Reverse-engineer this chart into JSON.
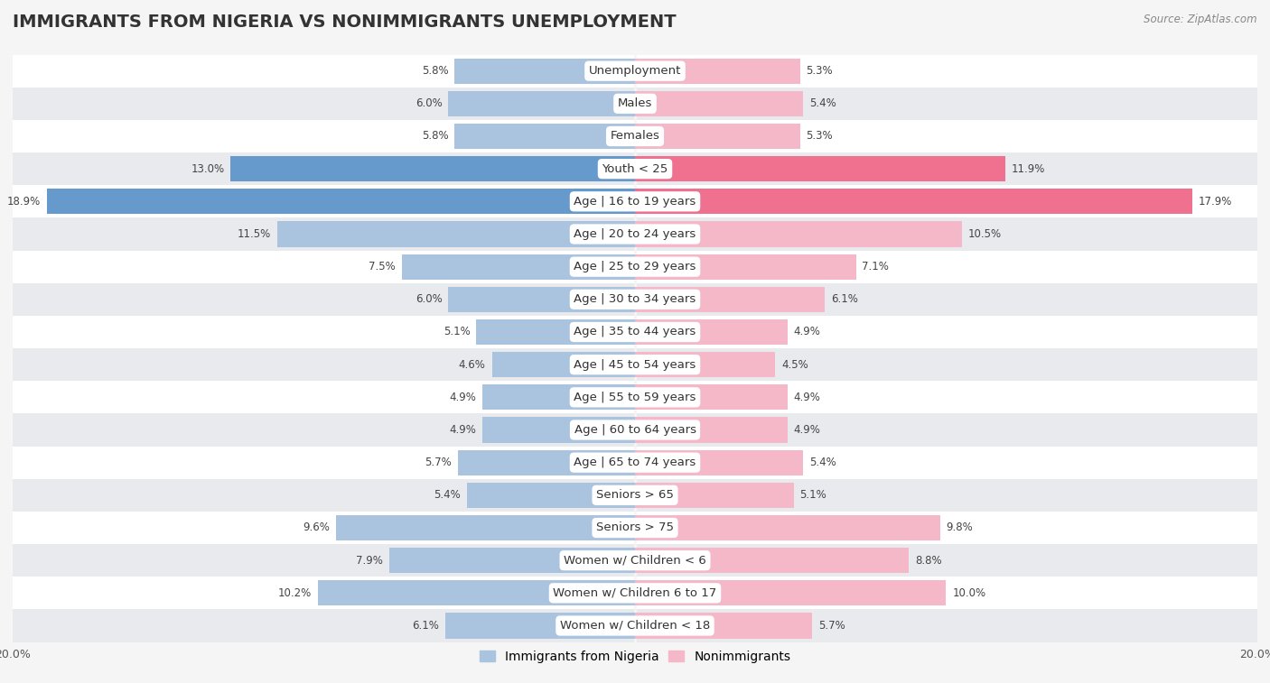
{
  "title": "IMMIGRANTS FROM NIGERIA VS NONIMMIGRANTS UNEMPLOYMENT",
  "source": "Source: ZipAtlas.com",
  "categories": [
    "Unemployment",
    "Males",
    "Females",
    "Youth < 25",
    "Age | 16 to 19 years",
    "Age | 20 to 24 years",
    "Age | 25 to 29 years",
    "Age | 30 to 34 years",
    "Age | 35 to 44 years",
    "Age | 45 to 54 years",
    "Age | 55 to 59 years",
    "Age | 60 to 64 years",
    "Age | 65 to 74 years",
    "Seniors > 65",
    "Seniors > 75",
    "Women w/ Children < 6",
    "Women w/ Children 6 to 17",
    "Women w/ Children < 18"
  ],
  "nigeria_values": [
    5.8,
    6.0,
    5.8,
    13.0,
    18.9,
    11.5,
    7.5,
    6.0,
    5.1,
    4.6,
    4.9,
    4.9,
    5.7,
    5.4,
    9.6,
    7.9,
    10.2,
    6.1
  ],
  "nonimmigrant_values": [
    5.3,
    5.4,
    5.3,
    11.9,
    17.9,
    10.5,
    7.1,
    6.1,
    4.9,
    4.5,
    4.9,
    4.9,
    5.4,
    5.1,
    9.8,
    8.8,
    10.0,
    5.7
  ],
  "nigeria_color": "#aac4df",
  "nonimmigrant_color": "#f5b8c8",
  "nigeria_highlight_color": "#6699cc",
  "nonimmigrant_highlight_color": "#f07090",
  "background_color": "#f5f5f5",
  "row_color_even": "#ffffff",
  "row_color_odd": "#e8eaed",
  "highlight_rows": [
    3,
    4
  ],
  "xlim": 20.0,
  "bar_height": 0.78,
  "legend_labels": [
    "Immigrants from Nigeria",
    "Nonimmigrants"
  ],
  "title_fontsize": 14,
  "label_fontsize": 9.5,
  "value_fontsize": 8.5,
  "source_fontsize": 8.5,
  "axis_label_fontsize": 9
}
